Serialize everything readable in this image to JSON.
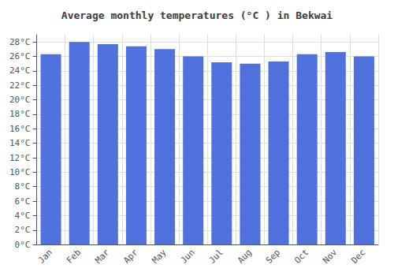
{
  "chart_data": {
    "type": "bar",
    "title": "Average monthly temperatures (°C ) in Bekwai",
    "categories": [
      "Jan",
      "Feb",
      "Mar",
      "Apr",
      "May",
      "Jun",
      "Jul",
      "Aug",
      "Sep",
      "Oct",
      "Nov",
      "Dec"
    ],
    "values": [
      26.3,
      28.0,
      27.7,
      27.4,
      27.0,
      26.0,
      25.2,
      25.0,
      25.3,
      26.3,
      26.6,
      26.0
    ],
    "ylim": [
      0,
      29
    ],
    "yticks": [
      {
        "value": 0,
        "label": "0°C"
      },
      {
        "value": 2,
        "label": "2°C"
      },
      {
        "value": 4,
        "label": "4°C"
      },
      {
        "value": 6,
        "label": "6°C"
      },
      {
        "value": 8,
        "label": "8°C"
      },
      {
        "value": 10,
        "label": "10°C"
      },
      {
        "value": 12,
        "label": "12°C"
      },
      {
        "value": 14,
        "label": "14°C"
      },
      {
        "value": 16,
        "label": "16°C"
      },
      {
        "value": 18,
        "label": "18°C"
      },
      {
        "value": 20,
        "label": "20°C"
      },
      {
        "value": 22,
        "label": "22°C"
      },
      {
        "value": 24,
        "label": "24°C"
      },
      {
        "value": 26,
        "label": "26°C"
      },
      {
        "value": 28,
        "label": "28°C"
      }
    ],
    "grid": true
  }
}
